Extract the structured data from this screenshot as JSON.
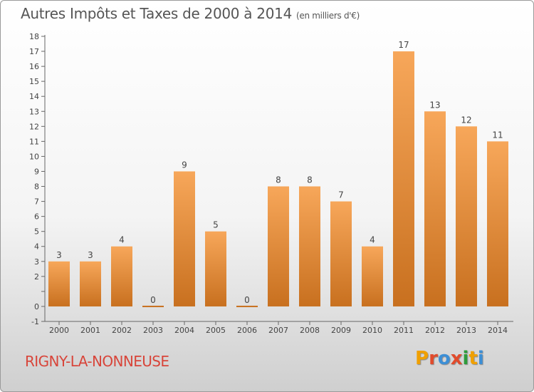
{
  "header": {
    "title": "Autres Impôts et Taxes de 2000 à 2014",
    "subtitle": "(en milliers d'€)"
  },
  "footer": {
    "commune": "RIGNY-LA-NONNEUSE",
    "logo_letters": [
      "P",
      "r",
      "o",
      "x",
      "i",
      "t",
      "i"
    ],
    "logo_colors": [
      "#f0a000",
      "#e14b2c",
      "#3d8fd6",
      "#e14b2c",
      "#2e9c3c",
      "#f0a000",
      "#3d8fd6"
    ]
  },
  "chart_data": {
    "type": "bar",
    "categories": [
      "2000",
      "2001",
      "2002",
      "2003",
      "2004",
      "2005",
      "2006",
      "2007",
      "2008",
      "2009",
      "2010",
      "2011",
      "2012",
      "2013",
      "2014"
    ],
    "values": [
      3,
      3,
      4,
      0,
      9,
      5,
      0,
      8,
      8,
      7,
      4,
      17,
      13,
      12,
      11
    ],
    "title": "Autres Impôts et Taxes de 2000 à 2014",
    "ylim": [
      -1,
      18
    ],
    "yticks": [
      -1,
      0,
      1,
      2,
      3,
      4,
      5,
      6,
      7,
      8,
      9,
      10,
      11,
      12,
      13,
      14,
      15,
      16,
      17,
      18
    ],
    "ytick_labels": [
      "-1",
      "0",
      "",
      "2",
      "3",
      "4",
      "5",
      "6",
      "7",
      "8",
      "9",
      "10",
      "11",
      "12",
      "13",
      "14",
      "15",
      "16",
      "17",
      "18"
    ],
    "grid": false,
    "colors": {
      "bar_top": "#f7a75a",
      "bar_bottom": "#c8701f",
      "axis": "#666666"
    }
  }
}
